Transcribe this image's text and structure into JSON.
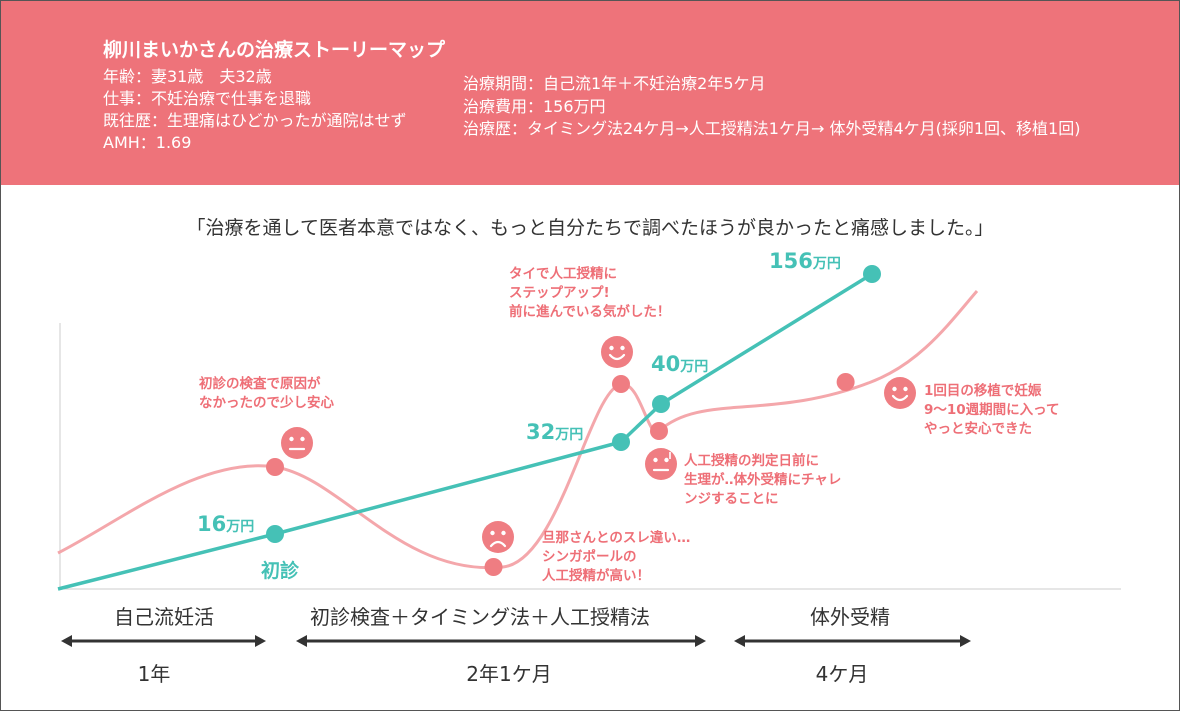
{
  "header": {
    "title": "柳川まいかさんの治療ストーリーマップ",
    "left_lines": [
      "年齢：妻31歳　夫32歳",
      "仕事：不妊治療で仕事を退職",
      "既往歴：生理痛はひどかったが通院はせず",
      "AMH：1.69"
    ],
    "right_lines": [
      "治療期間：自己流1年＋不妊治療2年5ケ月",
      "治療費用：156万円",
      "治療歴：タイミング法24ケ月→人工授精法1ケ月→ 体外受精4ケ月(採卵1回、移植1回)"
    ]
  },
  "quote": "「治療を通して医者本意ではなく、もっと自分たちで調べたほうが良かったと痛感しました。」",
  "phases": [
    {
      "label": "自己流妊活",
      "duration": "1年"
    },
    {
      "label": "初診検査＋タイミング法＋人工授精法",
      "duration": "2年1ケ月"
    },
    {
      "label": "体外受精",
      "duration": "4ケ月"
    }
  ],
  "first_visit_label": "初診",
  "chart_data": {
    "type": "line",
    "x_range": [
      0,
      41
    ],
    "x_unit": "months",
    "series": [
      {
        "kind": "cost",
        "color": "#45c1b6",
        "unit": "万円",
        "points": [
          {
            "x": 0,
            "y": 0
          },
          {
            "x": 12,
            "y": 16
          },
          {
            "x": 31,
            "y": 32
          },
          {
            "x": 33,
            "y": 40
          },
          {
            "x": 41,
            "y": 156
          }
        ]
      },
      {
        "kind": "emotion",
        "color": "#f4a7ab",
        "marker_color": "#ef7d82",
        "events": [
          {
            "month": 12,
            "mood": "neutral",
            "lines": [
              "初診の検査で原因が",
              "なかったので少し安心"
            ]
          },
          {
            "month": 24,
            "mood": "sad",
            "lines": [
              "旦那さんとのスレ違い…",
              "シンガポールの",
              "人工授精が高い！"
            ]
          },
          {
            "month": 31,
            "mood": "happy",
            "lines": [
              "タイで人工授精に",
              "ステップアップ!",
              "前に進んでいる気がした！"
            ]
          },
          {
            "month": 32,
            "mood": "worried",
            "lines": [
              "人工授精の判定日前に",
              "生理が‥体外受精にチャレ",
              "ンジすることに"
            ]
          },
          {
            "month": 40,
            "mood": "happy",
            "lines": [
              "1回目の移植で妊娠",
              "9～10週期間に入って",
              "やっと安心できた"
            ]
          }
        ]
      }
    ]
  }
}
